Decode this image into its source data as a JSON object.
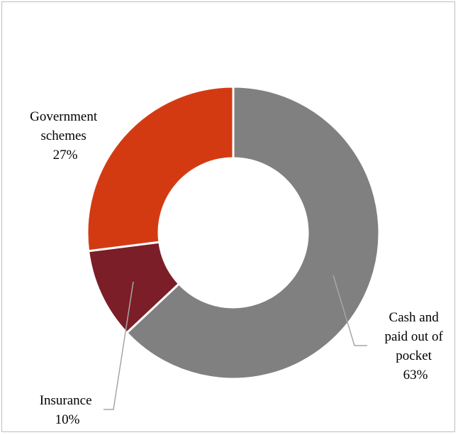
{
  "chart_data": {
    "type": "pie",
    "style": "donut",
    "slices": [
      {
        "label_lines": [
          "Cash and",
          "paid out of",
          "pocket"
        ],
        "value_label": "63%",
        "value": 63,
        "color": "#808080"
      },
      {
        "label_lines": [
          "Insurance"
        ],
        "value_label": "10%",
        "value": 10,
        "color": "#7b1e27"
      },
      {
        "label_lines": [
          "Government",
          "schemes"
        ],
        "value_label": "27%",
        "value": 27,
        "color": "#d43a12"
      }
    ],
    "legend": "none",
    "leader_line_color": "#a6a6a6"
  }
}
